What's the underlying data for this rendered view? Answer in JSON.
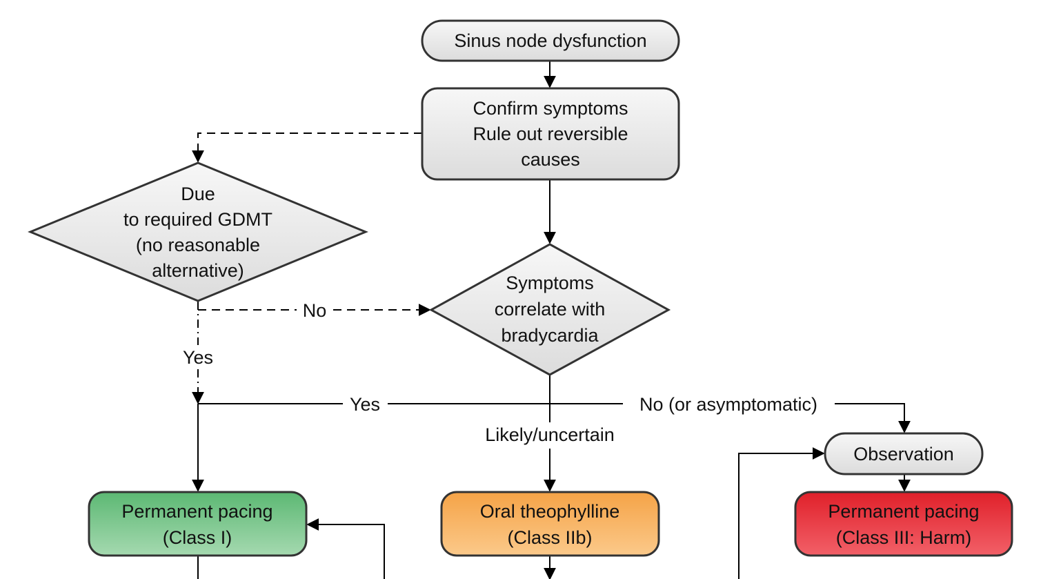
{
  "nodes": {
    "start": "Sinus node dysfunction",
    "confirm": [
      "Confirm symptoms",
      "Rule out reversible",
      "causes"
    ],
    "gdmt": [
      "Due",
      "to required GDMT",
      "(no reasonable",
      "alternative)"
    ],
    "correlate": [
      "Symptoms",
      "correlate with",
      "bradycardia"
    ],
    "observation": "Observation",
    "pacing_class1": [
      "Permanent pacing",
      "(Class I)"
    ],
    "theophylline": [
      "Oral theophylline",
      "(Class IIb)"
    ],
    "pacing_class3": [
      "Permanent pacing",
      "(Class III: Harm)"
    ]
  },
  "edge_labels": {
    "gdmt_no": "No",
    "gdmt_yes": "Yes",
    "correlate_yes": "Yes",
    "correlate_no": "No (or asymptomatic)",
    "correlate_likely": "Likely/uncertain"
  },
  "colors": {
    "node_fill": "#ececec",
    "class1_top": "#5cb873",
    "class1_bottom": "#a5d9b0",
    "class2b_top": "#f5a347",
    "class2b_bottom": "#fbc98a",
    "class3_top": "#e0202a",
    "class3_bottom": "#f26068",
    "stroke": "#333333"
  }
}
